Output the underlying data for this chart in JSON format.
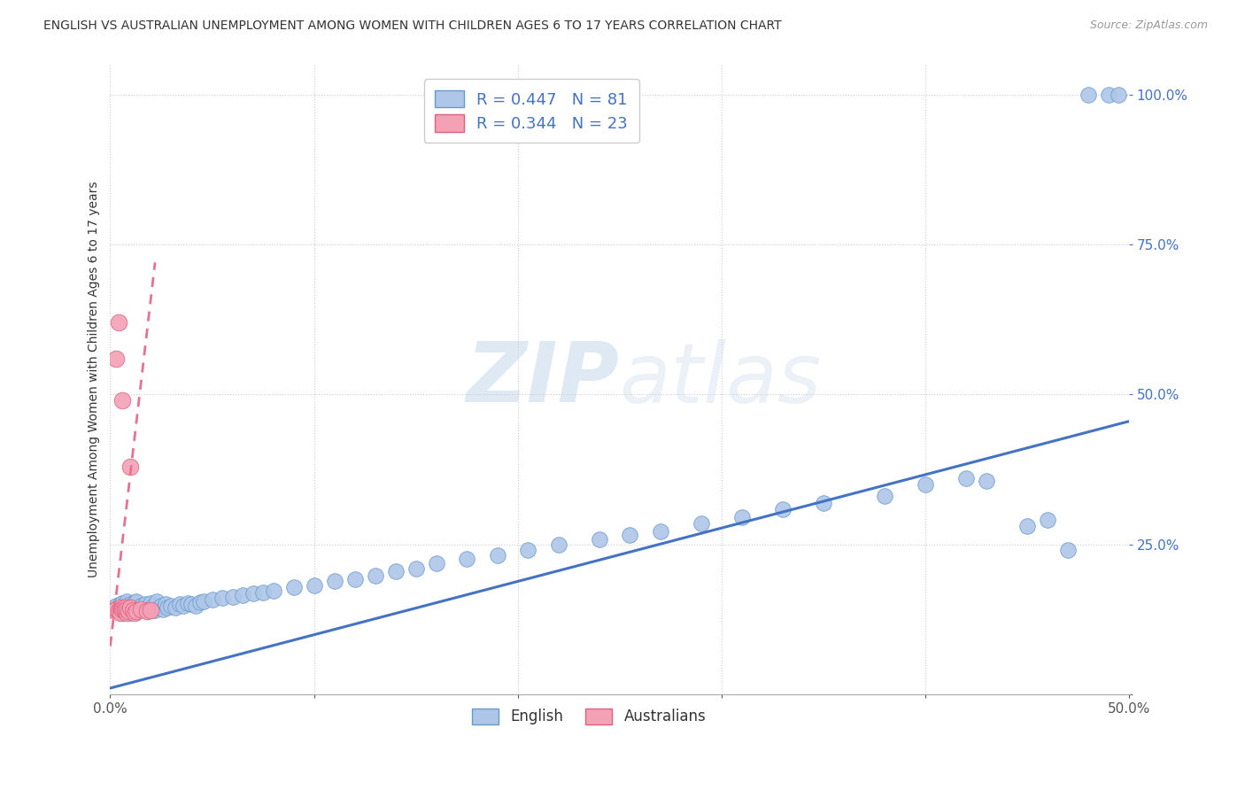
{
  "title": "ENGLISH VS AUSTRALIAN UNEMPLOYMENT AMONG WOMEN WITH CHILDREN AGES 6 TO 17 YEARS CORRELATION CHART",
  "source": "Source: ZipAtlas.com",
  "ylabel": "Unemployment Among Women with Children Ages 6 to 17 years",
  "xlim": [
    0.0,
    0.5
  ],
  "ylim": [
    0.0,
    1.05
  ],
  "english_color": "#aec6e8",
  "english_edge_color": "#6699cc",
  "australian_color": "#f4a0b5",
  "australian_edge_color": "#e06080",
  "trend_english_color": "#4472c4",
  "trend_australian_color": "#e87090",
  "R_english": 0.447,
  "N_english": 81,
  "R_australian": 0.344,
  "N_australian": 23,
  "legend_label_english": "English",
  "legend_label_australian": "Australians",
  "watermark_zip": "ZIP",
  "watermark_atlas": "atlas",
  "background_color": "#ffffff",
  "english_x": [
    0.002,
    0.003,
    0.004,
    0.005,
    0.005,
    0.006,
    0.006,
    0.007,
    0.007,
    0.008,
    0.008,
    0.009,
    0.009,
    0.01,
    0.01,
    0.011,
    0.011,
    0.012,
    0.012,
    0.013,
    0.013,
    0.014,
    0.015,
    0.016,
    0.017,
    0.018,
    0.019,
    0.02,
    0.021,
    0.022,
    0.023,
    0.024,
    0.025,
    0.026,
    0.027,
    0.028,
    0.03,
    0.032,
    0.034,
    0.036,
    0.038,
    0.04,
    0.042,
    0.044,
    0.046,
    0.05,
    0.055,
    0.06,
    0.065,
    0.07,
    0.075,
    0.08,
    0.09,
    0.1,
    0.11,
    0.12,
    0.13,
    0.14,
    0.15,
    0.16,
    0.175,
    0.19,
    0.205,
    0.22,
    0.24,
    0.255,
    0.27,
    0.29,
    0.31,
    0.33,
    0.35,
    0.38,
    0.4,
    0.42,
    0.43,
    0.45,
    0.46,
    0.47,
    0.48,
    0.49,
    0.495
  ],
  "english_y": [
    0.145,
    0.148,
    0.142,
    0.15,
    0.138,
    0.152,
    0.135,
    0.148,
    0.142,
    0.155,
    0.138,
    0.145,
    0.14,
    0.15,
    0.135,
    0.148,
    0.142,
    0.153,
    0.138,
    0.155,
    0.14,
    0.145,
    0.148,
    0.142,
    0.15,
    0.138,
    0.145,
    0.152,
    0.148,
    0.14,
    0.155,
    0.145,
    0.148,
    0.142,
    0.15,
    0.145,
    0.148,
    0.145,
    0.15,
    0.148,
    0.152,
    0.15,
    0.148,
    0.153,
    0.155,
    0.158,
    0.16,
    0.162,
    0.165,
    0.168,
    0.17,
    0.172,
    0.178,
    0.182,
    0.188,
    0.192,
    0.198,
    0.205,
    0.21,
    0.218,
    0.225,
    0.232,
    0.24,
    0.25,
    0.258,
    0.265,
    0.272,
    0.285,
    0.295,
    0.308,
    0.318,
    0.33,
    0.35,
    0.36,
    0.355,
    0.28,
    0.29,
    0.24,
    1.0,
    1.0,
    1.0
  ],
  "australian_x": [
    0.002,
    0.003,
    0.003,
    0.004,
    0.004,
    0.005,
    0.005,
    0.006,
    0.006,
    0.007,
    0.007,
    0.007,
    0.008,
    0.008,
    0.009,
    0.01,
    0.01,
    0.011,
    0.012,
    0.013,
    0.015,
    0.018,
    0.02
  ],
  "australian_y": [
    0.14,
    0.142,
    0.56,
    0.138,
    0.62,
    0.135,
    0.145,
    0.142,
    0.49,
    0.138,
    0.145,
    0.14,
    0.135,
    0.142,
    0.138,
    0.145,
    0.38,
    0.14,
    0.135,
    0.138,
    0.142,
    0.138,
    0.14
  ],
  "trend_eng_x0": 0.0,
  "trend_eng_x1": 0.5,
  "trend_eng_y0": 0.01,
  "trend_eng_y1": 0.455,
  "trend_aus_x0": 0.0,
  "trend_aus_x1": 0.022,
  "trend_aus_y0": 0.08,
  "trend_aus_y1": 0.72
}
